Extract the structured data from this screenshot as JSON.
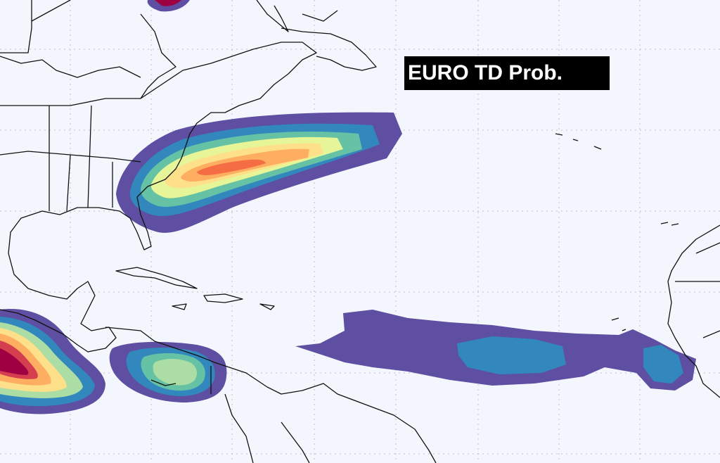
{
  "title": "EURO TD Prob."
}
